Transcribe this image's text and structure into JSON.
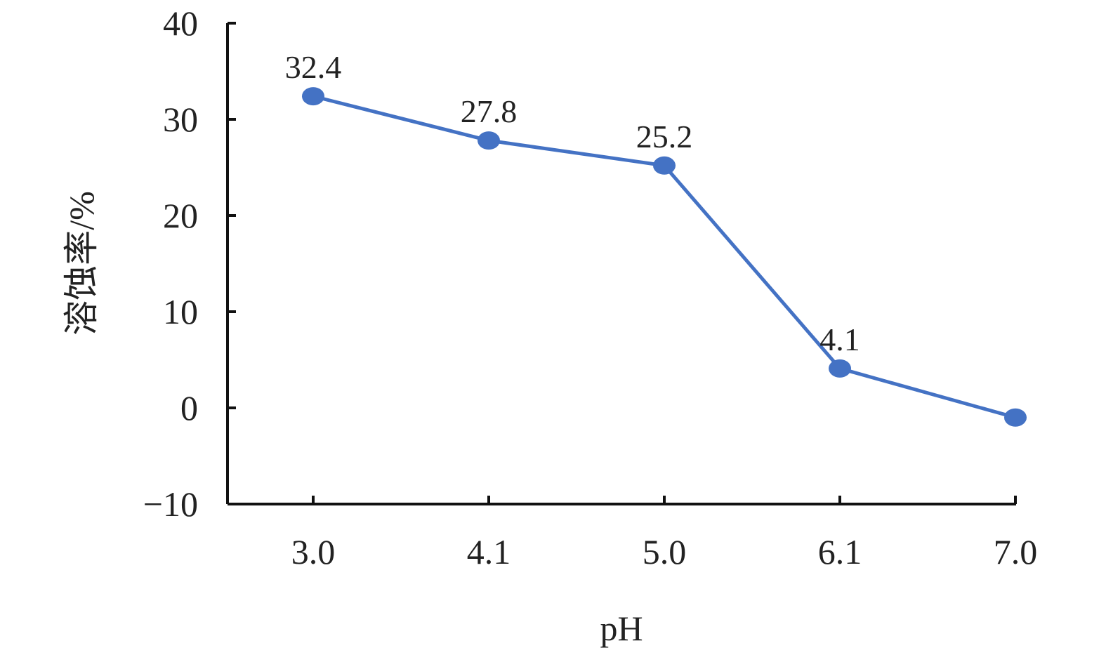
{
  "chart_data": {
    "type": "line",
    "title": "",
    "xlabel": "pH",
    "ylabel": "溶蚀率/%",
    "categories": [
      "3.0",
      "4.1",
      "5.0",
      "6.1",
      "7.0"
    ],
    "series": [
      {
        "values": [
          32.4,
          27.8,
          25.2,
          4.1,
          -1.0
        ],
        "data_labels": [
          "32.4",
          "27.8",
          "25.2",
          "4.1",
          ""
        ],
        "color": "#4472C4"
      }
    ],
    "ylim": [
      -10,
      40
    ],
    "yticks": [
      -10,
      0,
      10,
      20,
      30,
      40
    ],
    "ytick_labels": [
      "−10",
      "0",
      "10",
      "20",
      "30",
      "40"
    ],
    "grid": false,
    "legend": "none"
  }
}
